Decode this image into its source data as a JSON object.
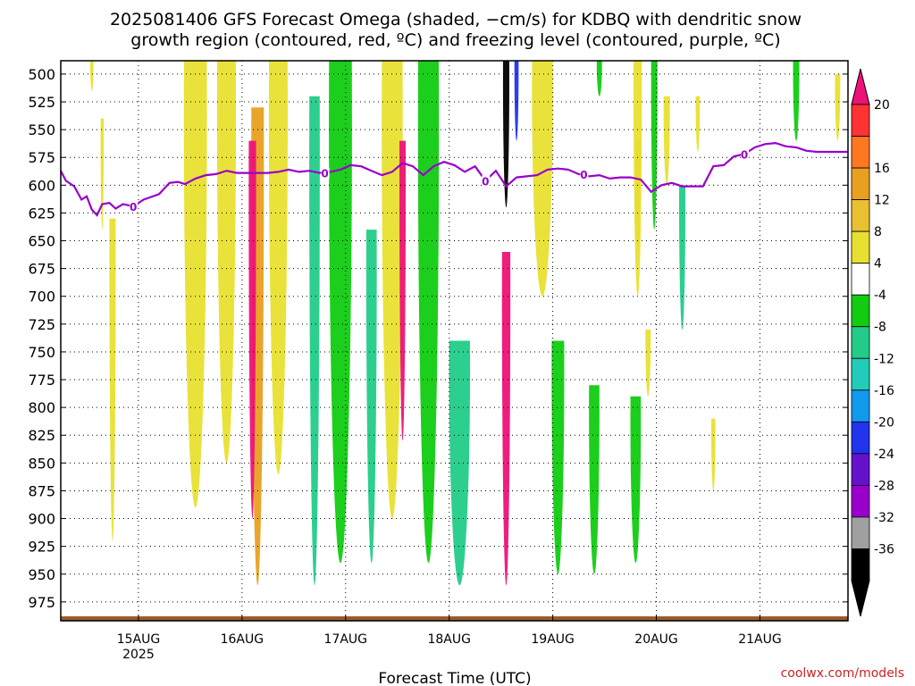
{
  "title": {
    "line1": "2025081406 GFS Forecast Omega (shaded, −cm/s) for KDBQ with dendritic snow",
    "line2": "growth region (contoured, red, ºC) and freezing level (contoured, purple, ºC)"
  },
  "credit": "coolwx.com/models",
  "chart_data": {
    "type": "heatmap",
    "title": "2025081406 GFS Forecast Omega (shaded, −cm/s) for KDBQ with dendritic snow growth region (contoured, red, ºC) and freezing level (contoured, purple, ºC)",
    "xlabel": "Forecast Time (UTC)",
    "ylabel": "",
    "x_ticks": [
      {
        "label": "15AUG",
        "sublabel": "2025",
        "day": 15.0
      },
      {
        "label": "16AUG",
        "sublabel": "",
        "day": 16.0
      },
      {
        "label": "17AUG",
        "sublabel": "",
        "day": 17.0
      },
      {
        "label": "18AUG",
        "sublabel": "",
        "day": 18.0
      },
      {
        "label": "19AUG",
        "sublabel": "",
        "day": 19.0
      },
      {
        "label": "20AUG",
        "sublabel": "",
        "day": 20.0
      },
      {
        "label": "21AUG",
        "sublabel": "",
        "day": 21.0
      }
    ],
    "xlim_day": [
      14.25,
      21.85
    ],
    "y_ticks": [
      "500",
      "525",
      "550",
      "575",
      "600",
      "625",
      "650",
      "675",
      "700",
      "725",
      "750",
      "775",
      "800",
      "825",
      "850",
      "875",
      "900",
      "925",
      "950",
      "975"
    ],
    "ylim_hpa": [
      488,
      992
    ],
    "grid": true,
    "colorbar": {
      "labels": [
        "20",
        "16",
        "12",
        "8",
        "4",
        "-4",
        "-8",
        "-12",
        "-16",
        "-20",
        "-24",
        "-28",
        "-32",
        "-36"
      ],
      "colors": [
        "#ff3333",
        "#ff7722",
        "#e8a020",
        "#e8c030",
        "#e8e030",
        "#ffffff",
        "#11cc11",
        "#22cc88",
        "#22ccbb",
        "#1199ee",
        "#2233ee",
        "#6611cc",
        "#9900cc",
        "#a0a0a0",
        "#000000"
      ],
      "top_arrow_color": "#ee1177",
      "bottom_arrow_color": "#000000"
    },
    "freezing_level": {
      "label": "0",
      "points": [
        [
          14.25,
          587
        ],
        [
          14.3,
          596
        ],
        [
          14.38,
          601
        ],
        [
          14.45,
          613
        ],
        [
          14.5,
          610
        ],
        [
          14.55,
          622
        ],
        [
          14.6,
          627
        ],
        [
          14.65,
          617
        ],
        [
          14.72,
          616
        ],
        [
          14.78,
          621
        ],
        [
          14.85,
          617
        ],
        [
          14.95,
          619
        ],
        [
          15.05,
          613
        ],
        [
          15.2,
          608
        ],
        [
          15.3,
          598
        ],
        [
          15.38,
          597
        ],
        [
          15.45,
          599
        ],
        [
          15.55,
          594
        ],
        [
          15.65,
          591
        ],
        [
          15.75,
          590
        ],
        [
          15.85,
          587
        ],
        [
          15.95,
          589
        ],
        [
          16.05,
          589
        ],
        [
          16.15,
          589
        ],
        [
          16.25,
          589
        ],
        [
          16.35,
          588
        ],
        [
          16.45,
          586
        ],
        [
          16.55,
          588
        ],
        [
          16.65,
          587
        ],
        [
          16.75,
          589
        ],
        [
          16.85,
          588
        ],
        [
          16.95,
          586
        ],
        [
          17.05,
          582
        ],
        [
          17.15,
          583
        ],
        [
          17.25,
          587
        ],
        [
          17.35,
          591
        ],
        [
          17.45,
          588
        ],
        [
          17.55,
          580
        ],
        [
          17.65,
          583
        ],
        [
          17.75,
          591
        ],
        [
          17.85,
          583
        ],
        [
          17.95,
          579
        ],
        [
          18.05,
          582
        ],
        [
          18.15,
          588
        ],
        [
          18.25,
          583
        ],
        [
          18.35,
          596
        ],
        [
          18.45,
          587
        ],
        [
          18.55,
          601
        ],
        [
          18.65,
          593
        ],
        [
          18.75,
          592
        ],
        [
          18.85,
          591
        ],
        [
          18.95,
          586
        ],
        [
          19.05,
          585
        ],
        [
          19.15,
          586
        ],
        [
          19.25,
          590
        ],
        [
          19.35,
          592
        ],
        [
          19.45,
          591
        ],
        [
          19.55,
          594
        ],
        [
          19.65,
          593
        ],
        [
          19.75,
          593
        ],
        [
          19.85,
          595
        ],
        [
          19.95,
          606
        ],
        [
          20.05,
          600
        ],
        [
          20.15,
          598
        ],
        [
          20.25,
          601
        ],
        [
          20.35,
          601
        ],
        [
          20.45,
          601
        ],
        [
          20.55,
          583
        ],
        [
          20.65,
          582
        ],
        [
          20.75,
          574
        ],
        [
          20.85,
          572
        ],
        [
          20.95,
          566
        ],
        [
          21.05,
          563
        ],
        [
          21.15,
          562
        ],
        [
          21.25,
          565
        ],
        [
          21.35,
          566
        ],
        [
          21.45,
          569
        ],
        [
          21.55,
          570
        ],
        [
          21.65,
          570
        ],
        [
          21.75,
          570
        ],
        [
          21.85,
          570
        ]
      ],
      "label_days": [
        14.95,
        16.8,
        18.35,
        19.3,
        20.85
      ]
    },
    "omega_regions": [
      {
        "value": 6,
        "day": 14.65,
        "top": 540,
        "bottom": 640,
        "w": 0.03
      },
      {
        "value": 6,
        "day": 14.55,
        "top": 488,
        "bottom": 515,
        "w": 0.03
      },
      {
        "value": 6,
        "day": 14.75,
        "top": 630,
        "bottom": 920,
        "w": 0.06
      },
      {
        "value": 6,
        "day": 15.55,
        "top": 488,
        "bottom": 890,
        "w": 0.22
      },
      {
        "value": 6,
        "day": 15.85,
        "top": 488,
        "bottom": 850,
        "w": 0.18
      },
      {
        "value": 10,
        "day": 16.15,
        "top": 530,
        "bottom": 960,
        "w": 0.12
      },
      {
        "value": 22,
        "day": 16.1,
        "top": 560,
        "bottom": 900,
        "w": 0.07
      },
      {
        "value": 6,
        "day": 16.35,
        "top": 488,
        "bottom": 860,
        "w": 0.18
      },
      {
        "value": -10,
        "day": 16.7,
        "top": 520,
        "bottom": 960,
        "w": 0.1
      },
      {
        "value": -6,
        "day": 16.95,
        "top": 488,
        "bottom": 940,
        "w": 0.22
      },
      {
        "value": -8,
        "day": 17.25,
        "top": 640,
        "bottom": 940,
        "w": 0.1
      },
      {
        "value": 6,
        "day": 17.45,
        "top": 488,
        "bottom": 900,
        "w": 0.2
      },
      {
        "value": 22,
        "day": 17.55,
        "top": 560,
        "bottom": 830,
        "w": 0.06
      },
      {
        "value": -6,
        "day": 17.8,
        "top": 488,
        "bottom": 940,
        "w": 0.2
      },
      {
        "value": -8,
        "day": 18.1,
        "top": 740,
        "bottom": 960,
        "w": 0.2
      },
      {
        "value": 22,
        "day": 18.55,
        "top": 660,
        "bottom": 960,
        "w": 0.08
      },
      {
        "value": -40,
        "day": 18.55,
        "top": 488,
        "bottom": 620,
        "w": 0.06
      },
      {
        "value": -20,
        "day": 18.65,
        "top": 488,
        "bottom": 560,
        "w": 0.04
      },
      {
        "value": 6,
        "day": 18.9,
        "top": 488,
        "bottom": 700,
        "w": 0.2
      },
      {
        "value": -6,
        "day": 19.05,
        "top": 740,
        "bottom": 950,
        "w": 0.12
      },
      {
        "value": -6,
        "day": 19.4,
        "top": 780,
        "bottom": 950,
        "w": 0.1
      },
      {
        "value": -6,
        "day": 19.45,
        "top": 488,
        "bottom": 520,
        "w": 0.05
      },
      {
        "value": -6,
        "day": 19.8,
        "top": 790,
        "bottom": 940,
        "w": 0.1
      },
      {
        "value": 10,
        "day": 19.82,
        "top": 560,
        "bottom": 660,
        "w": 0.05
      },
      {
        "value": 6,
        "day": 19.82,
        "top": 488,
        "bottom": 700,
        "w": 0.08
      },
      {
        "value": -6,
        "day": 19.98,
        "top": 488,
        "bottom": 640,
        "w": 0.06
      },
      {
        "value": 6,
        "day": 19.92,
        "top": 730,
        "bottom": 790,
        "w": 0.05
      },
      {
        "value": 6,
        "day": 20.1,
        "top": 520,
        "bottom": 600,
        "w": 0.06
      },
      {
        "value": -8,
        "day": 20.25,
        "top": 600,
        "bottom": 730,
        "w": 0.06
      },
      {
        "value": 6,
        "day": 20.4,
        "top": 520,
        "bottom": 570,
        "w": 0.04
      },
      {
        "value": 6,
        "day": 20.55,
        "top": 810,
        "bottom": 875,
        "w": 0.04
      },
      {
        "value": -6,
        "day": 21.35,
        "top": 488,
        "bottom": 560,
        "w": 0.06
      },
      {
        "value": 6,
        "day": 21.75,
        "top": 500,
        "bottom": 560,
        "w": 0.05
      }
    ],
    "ground_level_hpa": 988
  }
}
